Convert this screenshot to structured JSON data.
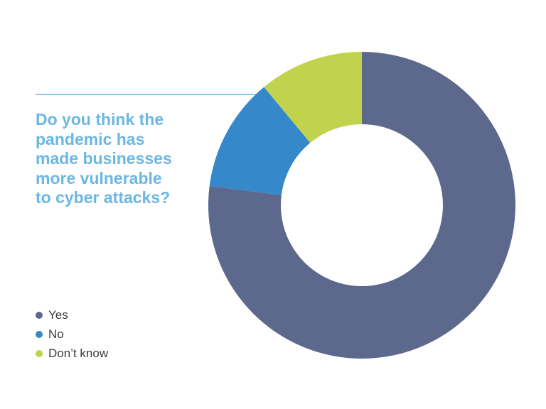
{
  "question": {
    "lines": [
      "Do you think the",
      "pandemic has",
      "made businesses",
      "more vulnerable",
      "to cyber attacks?"
    ]
  },
  "chart_data": {
    "type": "pie",
    "donut": true,
    "categories": [
      "Yes",
      "No",
      "Don’t know"
    ],
    "values": [
      77,
      12,
      11
    ],
    "unit": "%",
    "colors": [
      "#5c688c",
      "#3588c9",
      "#c1d24d"
    ],
    "legend_position": "bottom-left",
    "title": "",
    "xlabel": "",
    "ylabel": ""
  },
  "colors": {
    "question_text": "#6bb7e4",
    "leader_line": "#6bb7e4",
    "legend_text": "#3a3a3a"
  }
}
